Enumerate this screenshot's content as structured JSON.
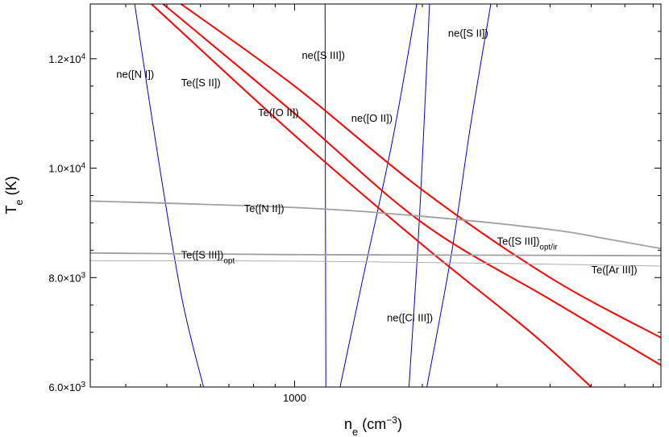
{
  "chart_data": {
    "type": "line",
    "title": "",
    "xlabel": {
      "main": "n",
      "sub": "e",
      "unit": " (cm",
      "sup": "−3",
      "close": ")"
    },
    "ylabel": {
      "main": "T",
      "sub": "e",
      "unit": " (K)"
    },
    "x_scale": "log",
    "xlim": [
      330,
      7300
    ],
    "ylim": [
      6000,
      13000
    ],
    "x_ticks": [
      {
        "value": 1000,
        "label": "1000"
      }
    ],
    "y_ticks": [
      {
        "value": 6000,
        "mant": "6.0",
        "exp": "3"
      },
      {
        "value": 8000,
        "mant": "8.0",
        "exp": "3"
      },
      {
        "value": 10000,
        "mant": "1.0",
        "exp": "4"
      },
      {
        "value": 12000,
        "mant": "1.2",
        "exp": "4"
      }
    ],
    "times_sign": "×10",
    "grid": false,
    "legend": "none",
    "colors": {
      "density": "#0000cc",
      "temperature": "#ff0000",
      "gray": "#a0a0a0",
      "lightgray": "#b0b0b0"
    },
    "series": [
      {
        "kind": "density",
        "color": "#0000cc",
        "x": [
          420,
          470,
          540,
          610
        ],
        "y": [
          13000,
          10500,
          7700,
          6000
        ]
      },
      {
        "kind": "density",
        "color": "#0000cc",
        "x": [
          1180,
          1182,
          1185
        ],
        "y": [
          13000,
          9500,
          6000
        ]
      },
      {
        "kind": "density",
        "color": "#0000cc",
        "x": [
          1280,
          1450,
          1700,
          1940
        ],
        "y": [
          6000,
          8000,
          10500,
          13000
        ]
      },
      {
        "kind": "density",
        "color": "#0000cc",
        "x": [
          1860,
          1950,
          2010,
          2080
        ],
        "y": [
          6000,
          8500,
          10500,
          13000
        ]
      },
      {
        "kind": "density",
        "color": "#0000cc",
        "x": [
          2050,
          2350,
          2600,
          2900
        ],
        "y": [
          6000,
          8500,
          10800,
          13000
        ]
      },
      {
        "kind": "temperature",
        "color": "#ff0000",
        "x": [
          460,
          1000,
          2000,
          3600,
          5000
        ],
        "y": [
          13000,
          10600,
          8600,
          7000,
          6000
        ]
      },
      {
        "kind": "temperature",
        "color": "#ff0000",
        "x": [
          490,
          1000,
          2000,
          4000,
          7300
        ],
        "y": [
          13000,
          11000,
          9000,
          7600,
          6400
        ]
      },
      {
        "kind": "temperature",
        "color": "#ff0000",
        "x": [
          540,
          1000,
          2000,
          4000,
          7300
        ],
        "y": [
          13000,
          11500,
          9600,
          8000,
          6900
        ]
      },
      {
        "kind": "temperature",
        "color": "#a0a0a0",
        "x": [
          330,
          1000,
          2000,
          4000,
          5500,
          7300
        ],
        "y": [
          9400,
          9280,
          9120,
          8880,
          8700,
          8530
        ]
      },
      {
        "kind": "temperature",
        "color": "#a0a0a0",
        "x": [
          330,
          1000,
          3000,
          7300
        ],
        "y": [
          8450,
          8420,
          8410,
          8400
        ]
      },
      {
        "kind": "temperature",
        "color": "#b0b0b0",
        "x": [
          330,
          1000,
          3000,
          7300
        ],
        "y": [
          8310,
          8300,
          8260,
          8210
        ]
      }
    ],
    "annotations": [
      {
        "x": 380,
        "y": 11650,
        "text": "ne([N I])",
        "sub": ""
      },
      {
        "x": 540,
        "y": 11500,
        "text": "Te([S II])",
        "sub": ""
      },
      {
        "x": 820,
        "y": 10950,
        "text": "Te([O II])",
        "sub": ""
      },
      {
        "x": 1040,
        "y": 12000,
        "text": "ne([S III])",
        "sub": ""
      },
      {
        "x": 1360,
        "y": 10850,
        "text": "ne([O II])",
        "sub": ""
      },
      {
        "x": 2300,
        "y": 12400,
        "text": "ne([S II])",
        "sub": ""
      },
      {
        "x": 760,
        "y": 9200,
        "text": "Te([N II])",
        "sub": ""
      },
      {
        "x": 540,
        "y": 8350,
        "text": "Te([S III])",
        "sub": "opt"
      },
      {
        "x": 3000,
        "y": 8600,
        "text": "Te([S III])",
        "sub": "opt/ir"
      },
      {
        "x": 5000,
        "y": 8080,
        "text": "Te([Ar III])",
        "sub": ""
      },
      {
        "x": 1650,
        "y": 7200,
        "text": "ne([Cl III])",
        "sub": ""
      }
    ]
  }
}
